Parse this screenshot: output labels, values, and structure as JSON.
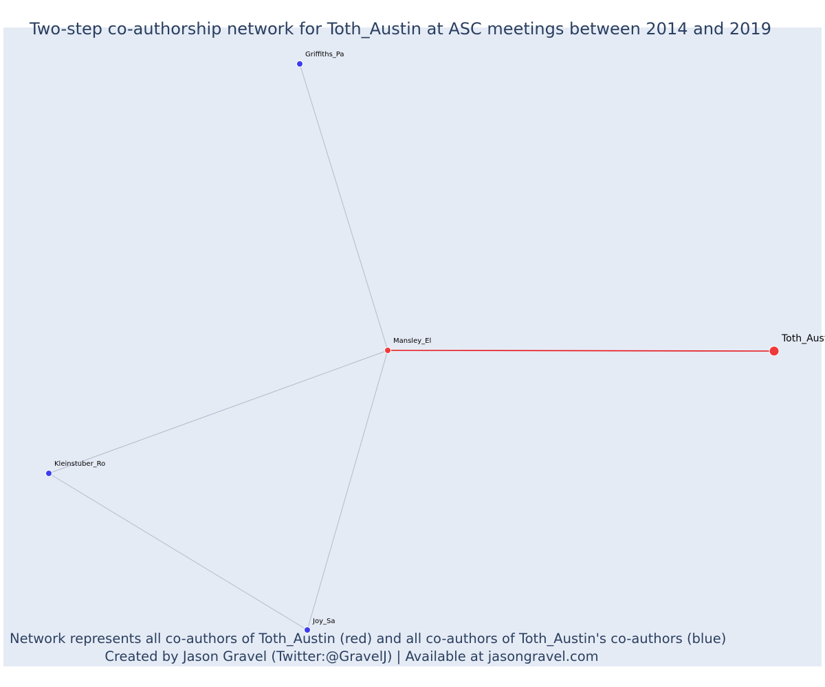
{
  "title": "Two-step co-authorship network for Toth_Austin at ASC meetings between 2014 and 2019",
  "captions": {
    "line1": "Network represents all co-authors of Toth_Austin (red) and all co-authors of Toth_Austin's co-authors (blue)",
    "line2": "Created by Jason Gravel (Twitter:@GravelJ) | Available at jasongravel.com"
  },
  "colors": {
    "background": "#e5ebf5",
    "ego_node": "#ef3a3a",
    "alter_node": "#3d3df0",
    "direct_edge": "#e8141a",
    "indirect_edge": "#b4b9cb"
  },
  "nodes": [
    {
      "id": "toth",
      "label": "Toth_Austin",
      "group": "ego"
    },
    {
      "id": "mansley",
      "label": "Mansley_El",
      "group": "co-author"
    },
    {
      "id": "griffiths",
      "label": "Griffiths_Pa",
      "group": "second-step"
    },
    {
      "id": "kleinstuber",
      "label": "Kleinstuber_Ro",
      "group": "second-step"
    },
    {
      "id": "joy",
      "label": "Joy_Sa",
      "group": "second-step"
    }
  ],
  "edges": [
    {
      "source": "mansley",
      "target": "toth",
      "type": "direct"
    },
    {
      "source": "mansley",
      "target": "griffiths",
      "type": "indirect"
    },
    {
      "source": "mansley",
      "target": "kleinstuber",
      "type": "indirect"
    },
    {
      "source": "mansley",
      "target": "joy",
      "type": "indirect"
    },
    {
      "source": "kleinstuber",
      "target": "joy",
      "type": "indirect"
    }
  ]
}
